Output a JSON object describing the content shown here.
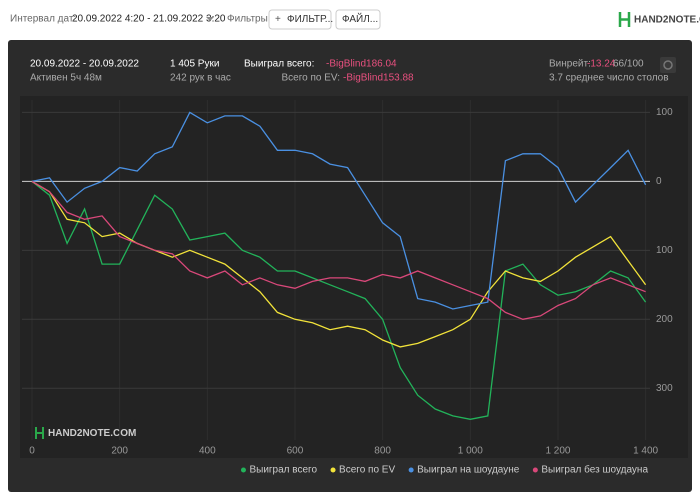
{
  "toolbar": {
    "date_label": "Интервал дат:",
    "date_range": "20.09.2022 4:20 - 21.09.2022 3:20",
    "filters_label": "Фильтры:",
    "filter_button": "ФИЛЬТР...",
    "file_button": "ФАЙЛ...",
    "logo": "HAND2NOTE.COM"
  },
  "header": {
    "period": "20.09.2022 - 20.09.2022",
    "active": "Активен 5ч 48м",
    "hands": "1 405 Руки",
    "hands_per_hour": "242 рук в час",
    "won_label": "Выиграл всего:",
    "won_value": "-BigBlind186.04",
    "ev_label": "Всего по EV:",
    "ev_value": "-BigBlind153.88",
    "winrate_label": "Винрейт:",
    "winrate_value": "-13.24",
    "winrate_unit": "66/100",
    "tables": "3.7 среднее число столов"
  },
  "chart_data": {
    "type": "line",
    "watermark": "HAND2NOTE.COM",
    "x": [
      0,
      40,
      80,
      120,
      160,
      200,
      240,
      280,
      320,
      360,
      400,
      440,
      480,
      520,
      560,
      600,
      640,
      680,
      720,
      760,
      800,
      840,
      880,
      920,
      960,
      1000,
      1040,
      1080,
      1120,
      1160,
      1200,
      1240,
      1280,
      1320,
      1360,
      1400
    ],
    "series": [
      {
        "name": "Выиграл всего",
        "color": "#22b35a",
        "values": [
          0,
          -20,
          -90,
          -40,
          -120,
          -120,
          -70,
          -20,
          -40,
          -85,
          -80,
          -75,
          -100,
          -110,
          -130,
          -130,
          -140,
          -150,
          -160,
          -170,
          -200,
          -270,
          -310,
          -330,
          -340,
          -345,
          -340,
          -130,
          -120,
          -150,
          -165,
          -160,
          -150,
          -130,
          -140,
          -175
        ]
      },
      {
        "name": "Всего по EV",
        "color": "#f2e33a",
        "values": [
          0,
          -15,
          -55,
          -60,
          -80,
          -75,
          -90,
          -100,
          -110,
          -100,
          -110,
          -120,
          -140,
          -160,
          -190,
          -200,
          -205,
          -215,
          -210,
          -215,
          -230,
          -240,
          -235,
          -225,
          -215,
          -200,
          -160,
          -130,
          -140,
          -145,
          -130,
          -110,
          -95,
          -80,
          -115,
          -150
        ]
      },
      {
        "name": "Выиграл на шоудауне",
        "color": "#4a90e2",
        "values": [
          0,
          5,
          -30,
          -10,
          0,
          20,
          15,
          40,
          50,
          100,
          85,
          95,
          95,
          80,
          45,
          45,
          40,
          25,
          20,
          -20,
          -60,
          -80,
          -170,
          -175,
          -185,
          -180,
          -175,
          30,
          40,
          40,
          20,
          -30,
          -5,
          20,
          45,
          -5
        ]
      },
      {
        "name": "Выиграл без шоудауна",
        "color": "#d9487a",
        "values": [
          0,
          -15,
          -45,
          -55,
          -50,
          -80,
          -90,
          -100,
          -105,
          -130,
          -140,
          -130,
          -150,
          -140,
          -150,
          -155,
          -145,
          -140,
          -140,
          -145,
          -135,
          -140,
          -130,
          -140,
          -150,
          -160,
          -170,
          -190,
          -200,
          -195,
          -180,
          -170,
          -150,
          -140,
          -150,
          -160
        ]
      }
    ],
    "xlim": [
      0,
      1410
    ],
    "ylim": [
      -375,
      118
    ],
    "xticks": [
      0,
      200,
      400,
      600,
      800,
      {
        "value": 1000,
        "label": "1 000"
      },
      {
        "value": 1200,
        "label": "1 200"
      },
      {
        "value": 1400,
        "label": "1 400"
      }
    ],
    "yticks": [
      100,
      0,
      {
        "value": -100,
        "label": "100"
      },
      {
        "value": -200,
        "label": "200"
      },
      {
        "value": -300,
        "label": "300"
      }
    ],
    "grid": true,
    "legend": "bottom-right"
  }
}
